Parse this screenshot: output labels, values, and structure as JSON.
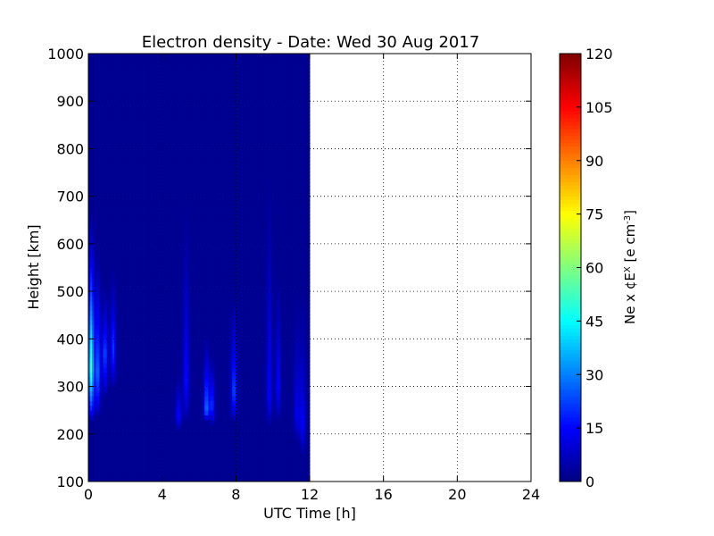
{
  "chart_data": {
    "type": "heatmap",
    "title": "Electron density - Date: Wed 30 Aug 2017",
    "xlabel": "UTC Time [h]",
    "ylabel": "Height [km]",
    "colorbar_label": "Ne x ¢E^X  [e cm^-3]",
    "xlim": [
      0,
      24
    ],
    "ylim": [
      100,
      1000
    ],
    "x_ticks": [
      "0",
      "4",
      "8",
      "12",
      "16",
      "20",
      "24"
    ],
    "y_ticks": [
      "100",
      "200",
      "300",
      "400",
      "500",
      "600",
      "700",
      "800",
      "900",
      "1000"
    ],
    "colorbar_range": [
      0,
      120
    ],
    "colorbar_ticks": [
      "0",
      "15",
      "30",
      "45",
      "60",
      "75",
      "90",
      "105",
      "120"
    ],
    "colormap": "jet",
    "grid": true,
    "data_coverage_hours": [
      0,
      12
    ],
    "background_value": 2,
    "features": [
      {
        "time": 0.15,
        "height_min": 230,
        "height_max": 680,
        "peak_height": 340,
        "peak_value": 55
      },
      {
        "time": 0.5,
        "height_min": 240,
        "height_max": 600,
        "peak_height": 330,
        "peak_value": 30
      },
      {
        "time": 0.9,
        "height_min": 280,
        "height_max": 520,
        "peak_height": 370,
        "peak_value": 25
      },
      {
        "time": 1.35,
        "height_min": 300,
        "height_max": 560,
        "peak_height": 380,
        "peak_value": 22
      },
      {
        "time": 4.9,
        "height_min": 210,
        "height_max": 330,
        "peak_height": 240,
        "peak_value": 18
      },
      {
        "time": 5.3,
        "height_min": 230,
        "height_max": 700,
        "peak_height": 310,
        "peak_value": 18
      },
      {
        "time": 6.4,
        "height_min": 230,
        "height_max": 420,
        "peak_height": 250,
        "peak_value": 30
      },
      {
        "time": 6.7,
        "height_min": 220,
        "height_max": 380,
        "peak_height": 260,
        "peak_value": 22
      },
      {
        "time": 7.9,
        "height_min": 230,
        "height_max": 500,
        "peak_height": 290,
        "peak_value": 25
      },
      {
        "time": 9.8,
        "height_min": 220,
        "height_max": 780,
        "peak_height": 280,
        "peak_value": 16
      },
      {
        "time": 10.3,
        "height_min": 230,
        "height_max": 560,
        "peak_height": 300,
        "peak_value": 16
      },
      {
        "time": 11.3,
        "height_min": 190,
        "height_max": 520,
        "peak_height": 240,
        "peak_value": 14
      },
      {
        "time": 11.6,
        "height_min": 160,
        "height_max": 500,
        "peak_height": 220,
        "peak_value": 16
      }
    ]
  }
}
